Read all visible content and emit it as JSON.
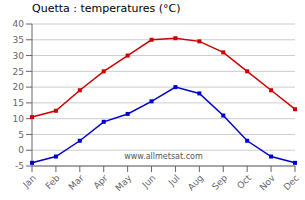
{
  "chart_data": {
    "type": "line",
    "title": "Quetta : temperatures (°C)",
    "categories": [
      "Jan",
      "Feb",
      "Mar",
      "Apr",
      "May",
      "Jun",
      "Jul",
      "Aug",
      "Sep",
      "Oct",
      "Nov",
      "Dec"
    ],
    "series": [
      {
        "color": "#cc0000",
        "marker": "square",
        "values": [
          10.5,
          12.5,
          19.0,
          25.0,
          30.0,
          35.0,
          35.5,
          34.5,
          31.0,
          25.0,
          19.0,
          13.0
        ]
      },
      {
        "color": "#0000cc",
        "marker": "square",
        "values": [
          -4.0,
          -2.0,
          3.0,
          9.0,
          11.5,
          15.5,
          20.0,
          18.0,
          11.0,
          3.0,
          -2.0,
          -4.0
        ]
      }
    ],
    "ylim": [
      -5,
      40
    ],
    "yticks": [
      -5,
      0,
      5,
      10,
      15,
      20,
      25,
      30,
      35,
      40
    ],
    "grid": "y",
    "annotations": [
      "www.allmetsat.com"
    ]
  }
}
